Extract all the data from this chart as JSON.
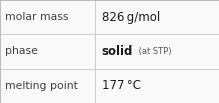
{
  "rows": [
    {
      "label": "molar mass",
      "value_plain": "826 g/mol",
      "type": "plain"
    },
    {
      "label": "phase",
      "value_bold": "solid",
      "value_small": " (at STP)",
      "type": "mixed"
    },
    {
      "label": "melting point",
      "value_plain": "177 °C",
      "type": "plain"
    }
  ],
  "col_split": 0.435,
  "background_color": "#f9f9f9",
  "border_color": "#bbbbbb",
  "label_color": "#404040",
  "value_color": "#1a1a1a",
  "small_color": "#555555",
  "font_size_label": 7.8,
  "font_size_value": 8.5,
  "font_size_small": 6.0,
  "fig_width": 2.19,
  "fig_height": 1.03,
  "dpi": 100
}
